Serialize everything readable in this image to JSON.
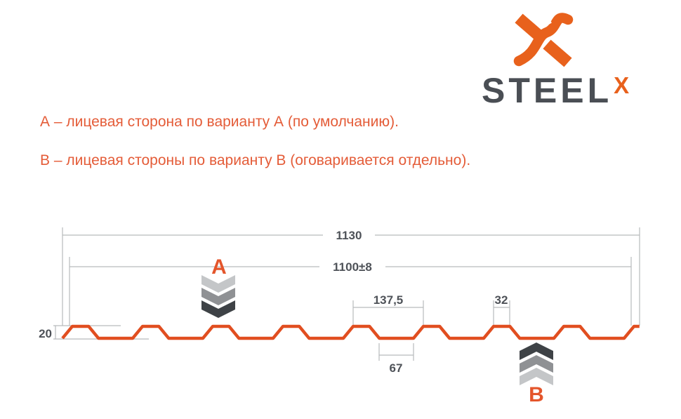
{
  "colors": {
    "accent_orange": "#e4552b",
    "profile_orange": "#e14e20",
    "logo_orange": "#e8611c",
    "wordmark_gray": "#4a4e54",
    "dim_text_gray": "#4e5258",
    "dim_line_gray": "#b8babc",
    "chevron_light": "#c4c6c8",
    "chevron_mid": "#8f9194",
    "chevron_dark": "#3e4246"
  },
  "logo": {
    "wordmark": "STEEL",
    "wordmark_sup": "X"
  },
  "notes": {
    "line_a": "А – лицевая сторона по варианту А (по умолчанию).",
    "line_b": "В – лицевая стороны по варианту В (оговаривается отдельно)."
  },
  "diagram": {
    "labels": {
      "variant_a": "A",
      "variant_b": "B"
    },
    "dimensions": {
      "full_width": "1130",
      "working_width": "1100±8",
      "pitch": "137,5",
      "rib_top": "32",
      "valley_bottom": "67",
      "height": "20"
    }
  },
  "profile": {
    "full_width_mm": 1130,
    "working_width_mm": 1100,
    "pitch_mm": 137.5,
    "rib_top_mm": 32,
    "valley_mm": 67,
    "height_mm": 20
  }
}
